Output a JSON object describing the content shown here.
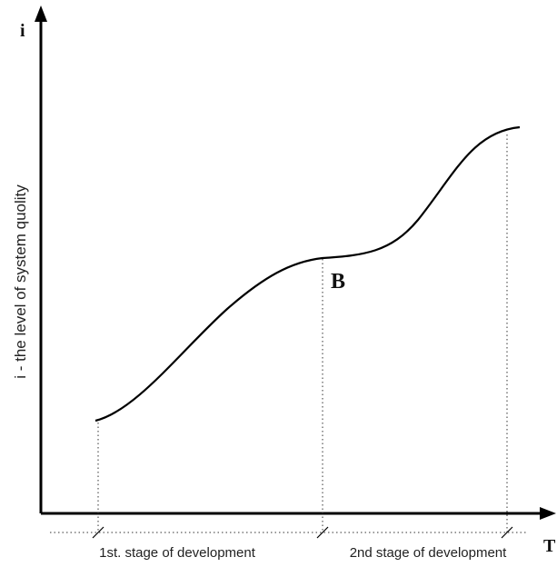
{
  "y_axis": {
    "symbol": "i",
    "label": "i - the level of system quolity"
  },
  "x_axis": {
    "symbol": "T"
  },
  "point": {
    "label": "B"
  },
  "stages": [
    "1st. stage of development",
    "2nd stage of development"
  ]
}
